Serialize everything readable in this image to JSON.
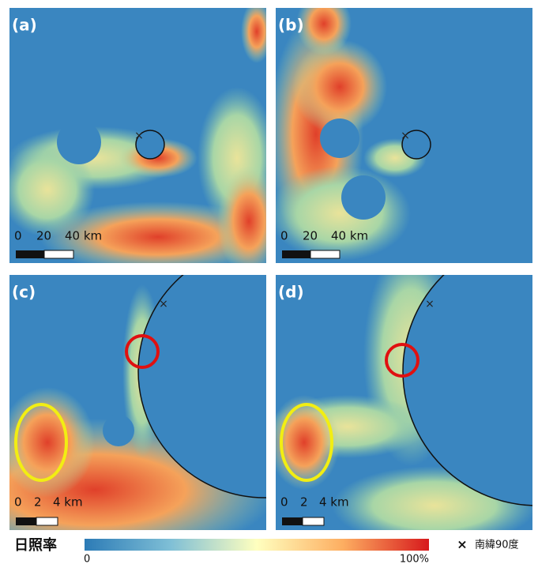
{
  "panels": [
    {
      "label": "(a)",
      "scale": [
        "0",
        "20",
        "40 km"
      ]
    },
    {
      "label": "(b)",
      "scale": [
        "0",
        "20",
        "40 km"
      ]
    },
    {
      "label": "(c)",
      "scale": [
        "0",
        "2",
        "4 km"
      ]
    },
    {
      "label": "(d)",
      "scale": [
        "0",
        "2",
        "4 km"
      ]
    }
  ],
  "colorbar": {
    "title": "日照率",
    "min": "0",
    "max": "100%"
  },
  "legend": {
    "marker": "×",
    "label": "南緯90度"
  }
}
